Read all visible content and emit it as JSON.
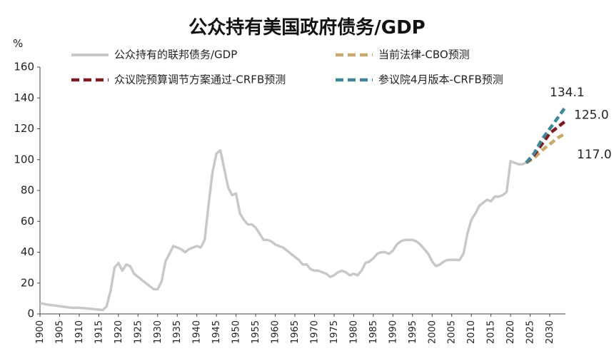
{
  "chart_data": {
    "type": "line",
    "title": "公众持有美国政府债务/GDP",
    "ylabel": "%",
    "xlabel": "",
    "xlim": [
      1900,
      2034
    ],
    "ylim": [
      0,
      160
    ],
    "yticks": [
      0,
      20,
      40,
      60,
      80,
      100,
      120,
      140,
      160
    ],
    "xticks": [
      1900,
      1905,
      1910,
      1915,
      1920,
      1925,
      1930,
      1935,
      1940,
      1945,
      1950,
      1955,
      1960,
      1965,
      1970,
      1975,
      1980,
      1985,
      1990,
      1995,
      2000,
      2005,
      2010,
      2015,
      2020,
      2025,
      2030
    ],
    "grid": false,
    "legend_position": "top",
    "series": [
      {
        "name": "公众持有的联邦债务/GDP",
        "color": "#c8c8c8",
        "style": "solid",
        "points": [
          [
            1900,
            7
          ],
          [
            1902,
            6
          ],
          [
            1905,
            5
          ],
          [
            1908,
            4
          ],
          [
            1910,
            4
          ],
          [
            1912,
            3.5
          ],
          [
            1914,
            3
          ],
          [
            1916,
            2.5
          ],
          [
            1917,
            5
          ],
          [
            1918,
            15
          ],
          [
            1919,
            30
          ],
          [
            1920,
            33
          ],
          [
            1921,
            28
          ],
          [
            1922,
            32
          ],
          [
            1923,
            31
          ],
          [
            1924,
            26
          ],
          [
            1925,
            24
          ],
          [
            1926,
            22
          ],
          [
            1927,
            20
          ],
          [
            1928,
            18
          ],
          [
            1929,
            16
          ],
          [
            1930,
            16
          ],
          [
            1931,
            21
          ],
          [
            1932,
            34
          ],
          [
            1933,
            39
          ],
          [
            1934,
            44
          ],
          [
            1935,
            43
          ],
          [
            1936,
            42
          ],
          [
            1937,
            40
          ],
          [
            1938,
            42
          ],
          [
            1939,
            43
          ],
          [
            1940,
            44
          ],
          [
            1941,
            43
          ],
          [
            1942,
            48
          ],
          [
            1943,
            71
          ],
          [
            1944,
            92
          ],
          [
            1945,
            104
          ],
          [
            1946,
            106
          ],
          [
            1947,
            94
          ],
          [
            1948,
            82
          ],
          [
            1949,
            77
          ],
          [
            1950,
            78
          ],
          [
            1951,
            65
          ],
          [
            1952,
            61
          ],
          [
            1953,
            58
          ],
          [
            1954,
            58
          ],
          [
            1955,
            56
          ],
          [
            1956,
            52
          ],
          [
            1957,
            48
          ],
          [
            1958,
            48
          ],
          [
            1959,
            47
          ],
          [
            1960,
            45
          ],
          [
            1961,
            44
          ],
          [
            1962,
            43
          ],
          [
            1963,
            41
          ],
          [
            1964,
            39
          ],
          [
            1965,
            37
          ],
          [
            1966,
            35
          ],
          [
            1967,
            32
          ],
          [
            1968,
            32
          ],
          [
            1969,
            29
          ],
          [
            1970,
            28
          ],
          [
            1971,
            28
          ],
          [
            1972,
            27
          ],
          [
            1973,
            26
          ],
          [
            1974,
            24
          ],
          [
            1975,
            25
          ],
          [
            1976,
            27
          ],
          [
            1977,
            28
          ],
          [
            1978,
            27
          ],
          [
            1979,
            25
          ],
          [
            1980,
            26
          ],
          [
            1981,
            25
          ],
          [
            1982,
            28
          ],
          [
            1983,
            33
          ],
          [
            1984,
            34
          ],
          [
            1985,
            36
          ],
          [
            1986,
            39
          ],
          [
            1987,
            40
          ],
          [
            1988,
            40
          ],
          [
            1989,
            39
          ],
          [
            1990,
            41
          ],
          [
            1991,
            45
          ],
          [
            1992,
            47
          ],
          [
            1993,
            48
          ],
          [
            1994,
            48
          ],
          [
            1995,
            48
          ],
          [
            1996,
            47
          ],
          [
            1997,
            45
          ],
          [
            1998,
            42
          ],
          [
            1999,
            39
          ],
          [
            2000,
            34
          ],
          [
            2001,
            31
          ],
          [
            2002,
            32
          ],
          [
            2003,
            34
          ],
          [
            2004,
            35
          ],
          [
            2005,
            35
          ],
          [
            2006,
            35
          ],
          [
            2007,
            35
          ],
          [
            2008,
            39
          ],
          [
            2009,
            52
          ],
          [
            2010,
            61
          ],
          [
            2011,
            65
          ],
          [
            2012,
            70
          ],
          [
            2013,
            72
          ],
          [
            2014,
            74
          ],
          [
            2015,
            73
          ],
          [
            2016,
            76
          ],
          [
            2017,
            76
          ],
          [
            2018,
            77
          ],
          [
            2019,
            79
          ],
          [
            2020,
            99
          ],
          [
            2021,
            98
          ],
          [
            2022,
            97
          ],
          [
            2023,
            97
          ],
          [
            2024,
            98
          ]
        ]
      },
      {
        "name": "当前法律-CBO预测",
        "color": "#c9a86a",
        "style": "dashed",
        "points": [
          [
            2024,
            98
          ],
          [
            2026,
            101
          ],
          [
            2028,
            106
          ],
          [
            2030,
            110
          ],
          [
            2032,
            114
          ],
          [
            2034,
            117
          ]
        ],
        "end_label": "117.0"
      },
      {
        "name": "众议院预算调节方案通过-CRFB预测",
        "color": "#7b1a1f",
        "style": "dashed",
        "points": [
          [
            2024,
            98
          ],
          [
            2026,
            103
          ],
          [
            2028,
            110
          ],
          [
            2030,
            117
          ],
          [
            2032,
            121
          ],
          [
            2034,
            125
          ]
        ],
        "end_label": "125.0"
      },
      {
        "name": "参议院4月版本-CRFB预测",
        "color": "#3f8797",
        "style": "dashed",
        "points": [
          [
            2024,
            98
          ],
          [
            2026,
            104
          ],
          [
            2028,
            113
          ],
          [
            2030,
            120
          ],
          [
            2032,
            127
          ],
          [
            2034,
            134.1
          ]
        ],
        "end_label": "134.1"
      }
    ]
  }
}
